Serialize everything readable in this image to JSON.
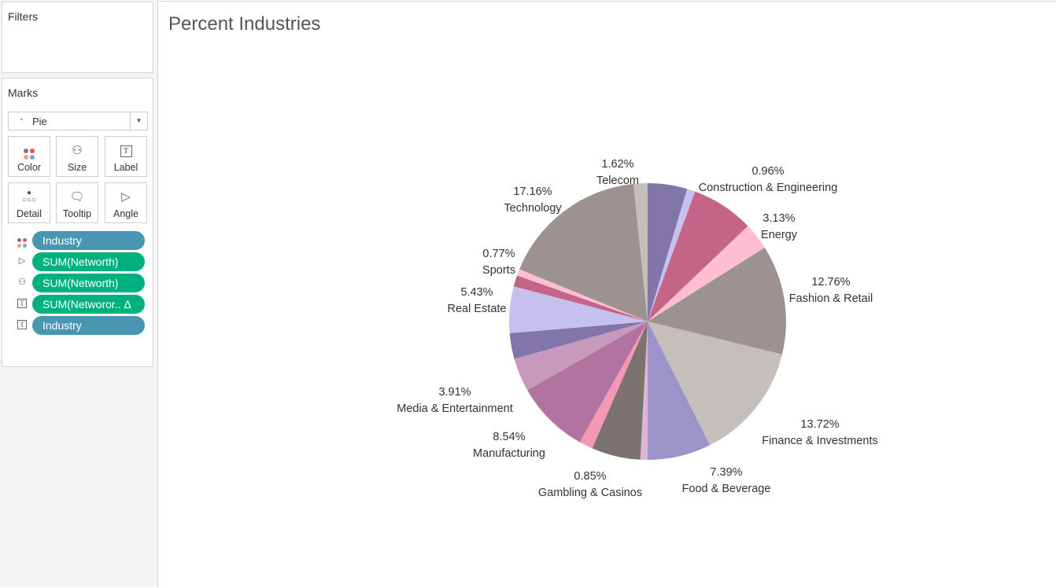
{
  "left_panel": {
    "filters_title": "Filters",
    "marks_title": "Marks",
    "mark_type": "Pie",
    "buttons": [
      {
        "label": "Color",
        "icon": "color-dots-icon"
      },
      {
        "label": "Size",
        "icon": "size-icon"
      },
      {
        "label": "Label",
        "icon": "text-label-icon"
      },
      {
        "label": "Detail",
        "icon": "detail-dots-icon"
      },
      {
        "label": "Tooltip",
        "icon": "tooltip-icon"
      },
      {
        "label": "Angle",
        "icon": "angle-icon"
      }
    ],
    "pills": [
      {
        "label": "Industry",
        "kind": "dimension",
        "icon": "color-dots-icon"
      },
      {
        "label": "SUM(Networth)",
        "kind": "measure",
        "icon": "angle-icon"
      },
      {
        "label": "SUM(Networth)",
        "kind": "measure",
        "icon": "size-icon"
      },
      {
        "label": "SUM(Networor.. Δ",
        "kind": "measure",
        "icon": "text-label-icon"
      },
      {
        "label": "Industry",
        "kind": "dimension",
        "icon": "text-label-icon"
      }
    ]
  },
  "chart_data": {
    "type": "pie",
    "title": "Percent Industries",
    "slices": [
      {
        "name": null,
        "value": 4.6,
        "label": null,
        "color": "#8175aa"
      },
      {
        "name": "Construction & Engineering",
        "value": 0.96,
        "label": "0.96%",
        "color": "#c6c0ef"
      },
      {
        "name": null,
        "value": 7.3,
        "label": null,
        "color": "#c46487"
      },
      {
        "name": "Energy",
        "value": 3.13,
        "label": "3.13%",
        "color": "#ffbed1"
      },
      {
        "name": "Fashion & Retail",
        "value": 12.76,
        "label": "12.76%",
        "color": "#9c9290"
      },
      {
        "name": "Finance & Investments",
        "value": 13.72,
        "label": "13.72%",
        "color": "#c5bfbc"
      },
      {
        "name": "Food & Beverage",
        "value": 7.39,
        "label": "7.39%",
        "color": "#9b93c9"
      },
      {
        "name": "Gambling & Casinos",
        "value": 0.85,
        "label": "0.85%",
        "color": "#ddb5d5"
      },
      {
        "name": null,
        "value": 5.7,
        "label": null,
        "color": "#7c7270"
      },
      {
        "name": null,
        "value": 1.6,
        "label": null,
        "color": "#f498b6"
      },
      {
        "name": "Manufacturing",
        "value": 8.54,
        "label": "8.54%",
        "color": "#b173a0"
      },
      {
        "name": "Media & Entertainment",
        "value": 3.91,
        "label": "3.91%",
        "color": "#c799bc"
      },
      {
        "name": null,
        "value": 3.0,
        "label": null,
        "color": "#8175aa"
      },
      {
        "name": "Real Estate",
        "value": 5.43,
        "label": "5.43%",
        "color": "#c6c0ef"
      },
      {
        "name": null,
        "value": 1.3,
        "label": null,
        "color": "#c46487"
      },
      {
        "name": "Sports",
        "value": 0.77,
        "label": "0.77%",
        "color": "#ffbed1"
      },
      {
        "name": "Technology",
        "value": 17.16,
        "label": "17.16%",
        "color": "#9c9290"
      },
      {
        "name": "Telecom",
        "value": 1.62,
        "label": "1.62%",
        "color": "#c5bfbc"
      }
    ]
  }
}
